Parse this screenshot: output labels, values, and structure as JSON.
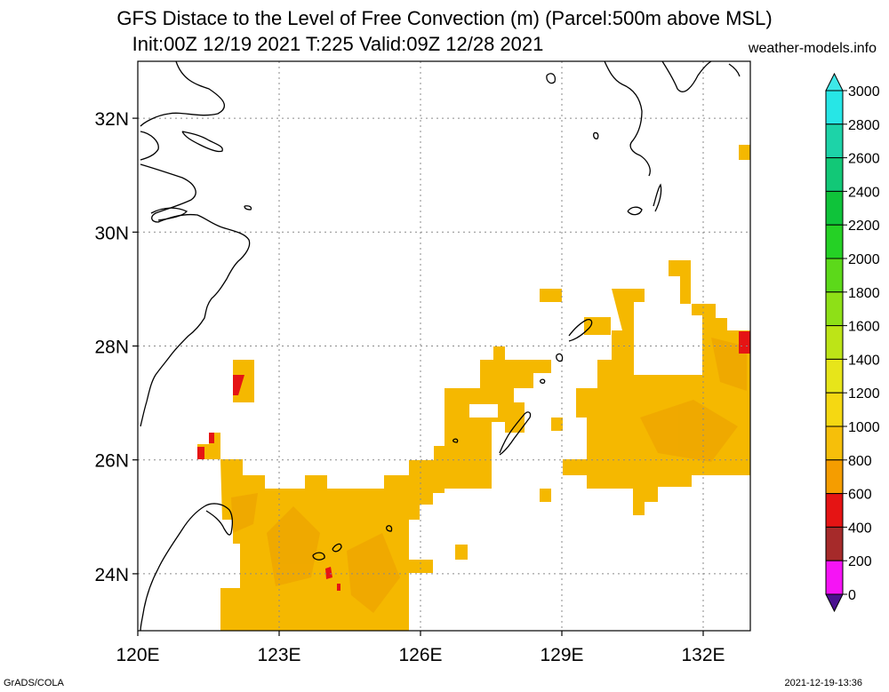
{
  "header": {
    "title_line1": "GFS Distace to the Level of Free Convection (m) (Parcel:500m above MSL)",
    "title_line2": "Init:00Z 12/19 2021 T:225 Valid:09Z 12/28 2021",
    "credit": "weather-models.info"
  },
  "map": {
    "lon_range": [
      120,
      133
    ],
    "lat_range": [
      23,
      33
    ],
    "x_ticks": [
      {
        "lon": 120,
        "label": "120E"
      },
      {
        "lon": 123,
        "label": "123E"
      },
      {
        "lon": 126,
        "label": "126E"
      },
      {
        "lon": 129,
        "label": "129E"
      },
      {
        "lon": 132,
        "label": "132E"
      }
    ],
    "y_ticks": [
      {
        "lat": 24,
        "label": "24N"
      },
      {
        "lat": 26,
        "label": "26N"
      },
      {
        "lat": 28,
        "label": "28N"
      },
      {
        "lat": 30,
        "label": "30N"
      },
      {
        "lat": 32,
        "label": "32N"
      }
    ],
    "grid": true,
    "fill_color": "#f5b800",
    "fill_color_dark": "#eea400"
  },
  "colorbar": {
    "levels": [
      {
        "value": 3000,
        "label": "3000",
        "color": "#27e6e6"
      },
      {
        "value": 2800,
        "label": "2800",
        "color": "#1dd3a8"
      },
      {
        "value": 2600,
        "label": "2600",
        "color": "#12c877"
      },
      {
        "value": 2400,
        "label": "2400",
        "color": "#0fc33a"
      },
      {
        "value": 2200,
        "label": "2200",
        "color": "#25d125"
      },
      {
        "value": 2000,
        "label": "2000",
        "color": "#5cd91a"
      },
      {
        "value": 1800,
        "label": "1800",
        "color": "#8ee017"
      },
      {
        "value": 1600,
        "label": "1600",
        "color": "#bde417"
      },
      {
        "value": 1400,
        "label": "1400",
        "color": "#e7e51a"
      },
      {
        "value": 1200,
        "label": "1200",
        "color": "#f5d812"
      },
      {
        "value": 1000,
        "label": "1000",
        "color": "#f6bf0a"
      },
      {
        "value": 800,
        "label": "800",
        "color": "#f59d00"
      },
      {
        "value": 600,
        "label": "600",
        "color": "#e51414"
      },
      {
        "value": 400,
        "label": "400",
        "color": "#a62a2a"
      },
      {
        "value": 200,
        "label": "200",
        "color": "#f514f5"
      },
      {
        "value": 0,
        "label": "0",
        "color": "#6a1dc8"
      }
    ],
    "top_arrow_color": "#3ee8e8",
    "bottom_arrow_color": "#4a128f"
  },
  "footer": {
    "left": "GrADS/COLA",
    "right": "2021-12-19-13:36"
  }
}
